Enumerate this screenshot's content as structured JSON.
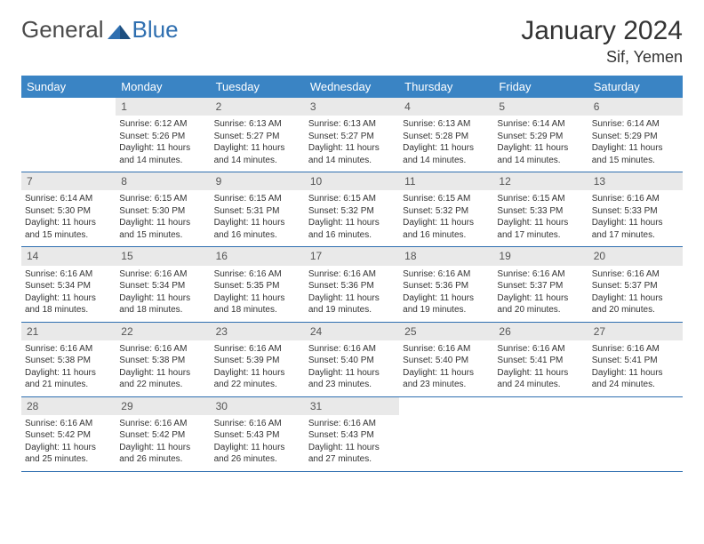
{
  "brand": {
    "word1": "General",
    "word2": "Blue"
  },
  "title": "January 2024",
  "location": "Sif, Yemen",
  "colors": {
    "header_bg": "#3a84c4",
    "header_text": "#ffffff",
    "numbar_bg": "#e9e9e9",
    "rule": "#2f6fb0",
    "body_text": "#333333",
    "brand_gray": "#4a4a4a",
    "brand_blue": "#2f6fb0"
  },
  "day_names": [
    "Sunday",
    "Monday",
    "Tuesday",
    "Wednesday",
    "Thursday",
    "Friday",
    "Saturday"
  ],
  "weeks": [
    [
      {
        "n": "",
        "sunrise": "",
        "sunset": "",
        "daylight": ""
      },
      {
        "n": "1",
        "sunrise": "Sunrise: 6:12 AM",
        "sunset": "Sunset: 5:26 PM",
        "daylight": "Daylight: 11 hours and 14 minutes."
      },
      {
        "n": "2",
        "sunrise": "Sunrise: 6:13 AM",
        "sunset": "Sunset: 5:27 PM",
        "daylight": "Daylight: 11 hours and 14 minutes."
      },
      {
        "n": "3",
        "sunrise": "Sunrise: 6:13 AM",
        "sunset": "Sunset: 5:27 PM",
        "daylight": "Daylight: 11 hours and 14 minutes."
      },
      {
        "n": "4",
        "sunrise": "Sunrise: 6:13 AM",
        "sunset": "Sunset: 5:28 PM",
        "daylight": "Daylight: 11 hours and 14 minutes."
      },
      {
        "n": "5",
        "sunrise": "Sunrise: 6:14 AM",
        "sunset": "Sunset: 5:29 PM",
        "daylight": "Daylight: 11 hours and 14 minutes."
      },
      {
        "n": "6",
        "sunrise": "Sunrise: 6:14 AM",
        "sunset": "Sunset: 5:29 PM",
        "daylight": "Daylight: 11 hours and 15 minutes."
      }
    ],
    [
      {
        "n": "7",
        "sunrise": "Sunrise: 6:14 AM",
        "sunset": "Sunset: 5:30 PM",
        "daylight": "Daylight: 11 hours and 15 minutes."
      },
      {
        "n": "8",
        "sunrise": "Sunrise: 6:15 AM",
        "sunset": "Sunset: 5:30 PM",
        "daylight": "Daylight: 11 hours and 15 minutes."
      },
      {
        "n": "9",
        "sunrise": "Sunrise: 6:15 AM",
        "sunset": "Sunset: 5:31 PM",
        "daylight": "Daylight: 11 hours and 16 minutes."
      },
      {
        "n": "10",
        "sunrise": "Sunrise: 6:15 AM",
        "sunset": "Sunset: 5:32 PM",
        "daylight": "Daylight: 11 hours and 16 minutes."
      },
      {
        "n": "11",
        "sunrise": "Sunrise: 6:15 AM",
        "sunset": "Sunset: 5:32 PM",
        "daylight": "Daylight: 11 hours and 16 minutes."
      },
      {
        "n": "12",
        "sunrise": "Sunrise: 6:15 AM",
        "sunset": "Sunset: 5:33 PM",
        "daylight": "Daylight: 11 hours and 17 minutes."
      },
      {
        "n": "13",
        "sunrise": "Sunrise: 6:16 AM",
        "sunset": "Sunset: 5:33 PM",
        "daylight": "Daylight: 11 hours and 17 minutes."
      }
    ],
    [
      {
        "n": "14",
        "sunrise": "Sunrise: 6:16 AM",
        "sunset": "Sunset: 5:34 PM",
        "daylight": "Daylight: 11 hours and 18 minutes."
      },
      {
        "n": "15",
        "sunrise": "Sunrise: 6:16 AM",
        "sunset": "Sunset: 5:34 PM",
        "daylight": "Daylight: 11 hours and 18 minutes."
      },
      {
        "n": "16",
        "sunrise": "Sunrise: 6:16 AM",
        "sunset": "Sunset: 5:35 PM",
        "daylight": "Daylight: 11 hours and 18 minutes."
      },
      {
        "n": "17",
        "sunrise": "Sunrise: 6:16 AM",
        "sunset": "Sunset: 5:36 PM",
        "daylight": "Daylight: 11 hours and 19 minutes."
      },
      {
        "n": "18",
        "sunrise": "Sunrise: 6:16 AM",
        "sunset": "Sunset: 5:36 PM",
        "daylight": "Daylight: 11 hours and 19 minutes."
      },
      {
        "n": "19",
        "sunrise": "Sunrise: 6:16 AM",
        "sunset": "Sunset: 5:37 PM",
        "daylight": "Daylight: 11 hours and 20 minutes."
      },
      {
        "n": "20",
        "sunrise": "Sunrise: 6:16 AM",
        "sunset": "Sunset: 5:37 PM",
        "daylight": "Daylight: 11 hours and 20 minutes."
      }
    ],
    [
      {
        "n": "21",
        "sunrise": "Sunrise: 6:16 AM",
        "sunset": "Sunset: 5:38 PM",
        "daylight": "Daylight: 11 hours and 21 minutes."
      },
      {
        "n": "22",
        "sunrise": "Sunrise: 6:16 AM",
        "sunset": "Sunset: 5:38 PM",
        "daylight": "Daylight: 11 hours and 22 minutes."
      },
      {
        "n": "23",
        "sunrise": "Sunrise: 6:16 AM",
        "sunset": "Sunset: 5:39 PM",
        "daylight": "Daylight: 11 hours and 22 minutes."
      },
      {
        "n": "24",
        "sunrise": "Sunrise: 6:16 AM",
        "sunset": "Sunset: 5:40 PM",
        "daylight": "Daylight: 11 hours and 23 minutes."
      },
      {
        "n": "25",
        "sunrise": "Sunrise: 6:16 AM",
        "sunset": "Sunset: 5:40 PM",
        "daylight": "Daylight: 11 hours and 23 minutes."
      },
      {
        "n": "26",
        "sunrise": "Sunrise: 6:16 AM",
        "sunset": "Sunset: 5:41 PM",
        "daylight": "Daylight: 11 hours and 24 minutes."
      },
      {
        "n": "27",
        "sunrise": "Sunrise: 6:16 AM",
        "sunset": "Sunset: 5:41 PM",
        "daylight": "Daylight: 11 hours and 24 minutes."
      }
    ],
    [
      {
        "n": "28",
        "sunrise": "Sunrise: 6:16 AM",
        "sunset": "Sunset: 5:42 PM",
        "daylight": "Daylight: 11 hours and 25 minutes."
      },
      {
        "n": "29",
        "sunrise": "Sunrise: 6:16 AM",
        "sunset": "Sunset: 5:42 PM",
        "daylight": "Daylight: 11 hours and 26 minutes."
      },
      {
        "n": "30",
        "sunrise": "Sunrise: 6:16 AM",
        "sunset": "Sunset: 5:43 PM",
        "daylight": "Daylight: 11 hours and 26 minutes."
      },
      {
        "n": "31",
        "sunrise": "Sunrise: 6:16 AM",
        "sunset": "Sunset: 5:43 PM",
        "daylight": "Daylight: 11 hours and 27 minutes."
      },
      {
        "n": "",
        "sunrise": "",
        "sunset": "",
        "daylight": ""
      },
      {
        "n": "",
        "sunrise": "",
        "sunset": "",
        "daylight": ""
      },
      {
        "n": "",
        "sunrise": "",
        "sunset": "",
        "daylight": ""
      }
    ]
  ]
}
